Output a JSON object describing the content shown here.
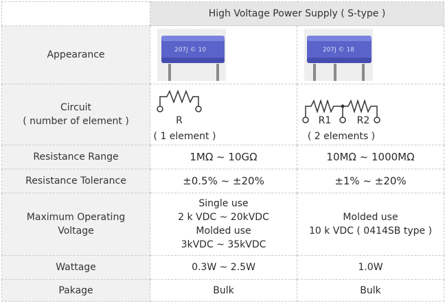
{
  "table": {
    "header": "High Voltage Power Supply ( S-type )",
    "rows": {
      "appearance": {
        "label": "Appearance",
        "left_marking": "207J © 10",
        "right_marking": "207J © 18"
      },
      "circuit": {
        "label_line1": "Circuit",
        "label_line2": "( number of element )",
        "left_name": "R",
        "left_count": "( 1 element )",
        "right_name1": "R1",
        "right_name2": "R2",
        "right_count": "( 2 elements )"
      },
      "resistance_range": {
        "label": "Resistance Range",
        "left": "1MΩ ~ 10GΩ",
        "right": "10MΩ ~ 1000MΩ"
      },
      "resistance_tolerance": {
        "label": "Resistance Tolerance",
        "left": "±0.5% ~ ±20%",
        "right": "±1% ~ ±20%"
      },
      "max_voltage": {
        "label_line1": "Maximum Operating",
        "label_line2": "Voltage",
        "left_line1": "Single use",
        "left_line2": "2 k VDC ~ 20kVDC",
        "left_line3": "Molded use",
        "left_line4": "3kVDC ~ 35kVDC",
        "right_line1": "Molded use",
        "right_line2": "10 k VDC ( 0414SB type )"
      },
      "wattage": {
        "label": "Wattage",
        "left": "0.3W ~ 2.5W",
        "right": "1.0W"
      },
      "package": {
        "label": "Pakage",
        "left": "Bulk",
        "right": "Bulk"
      }
    }
  },
  "colors": {
    "resistor_body": "#5a63c9",
    "label_bg": "#f1f1f1",
    "header_bg": "#e6e6e6",
    "border": "#c8c8c8"
  }
}
